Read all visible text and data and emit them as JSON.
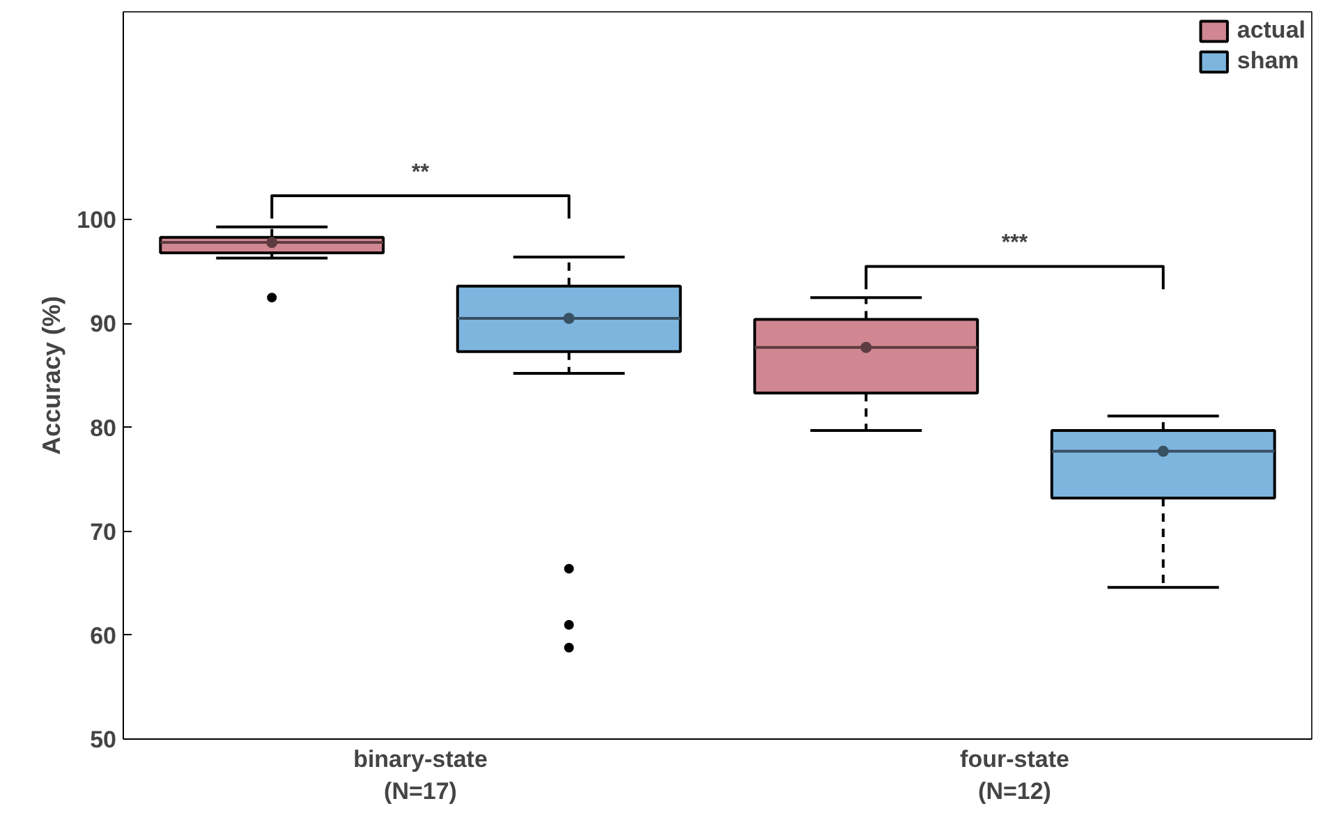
{
  "chart_data": {
    "type": "box",
    "ylabel": "Accuracy (%)",
    "categories": [
      "binary-state\n(N=17)",
      "four-state\n(N=12)"
    ],
    "ylim": [
      50,
      120
    ],
    "yticks": [
      50,
      60,
      70,
      80,
      90,
      100
    ],
    "grid": false,
    "legend": "top right",
    "series": [
      {
        "name": "actual",
        "color": "#d08791",
        "boxes": [
          {
            "low": 96.3,
            "q1": 96.8,
            "median": 97.8,
            "q3": 98.3,
            "high": 99.3,
            "mean": 97.8,
            "outliers": [
              92.5
            ]
          },
          {
            "low": 79.7,
            "q1": 83.3,
            "median": 87.7,
            "q3": 90.4,
            "high": 92.5,
            "mean": 87.7
          }
        ]
      },
      {
        "name": "sham",
        "color": "#7eb5de",
        "boxes": [
          {
            "low": 85.2,
            "q1": 87.3,
            "median": 90.5,
            "q3": 93.6,
            "high": 96.4,
            "mean": 90.5,
            "outliers": [
              66.4,
              61.0,
              58.8
            ]
          },
          {
            "low": 64.6,
            "q1": 73.2,
            "median": 77.7,
            "q3": 79.7,
            "high": 81.1,
            "mean": 77.7
          }
        ]
      }
    ],
    "annotations": [
      "**",
      "***"
    ]
  }
}
